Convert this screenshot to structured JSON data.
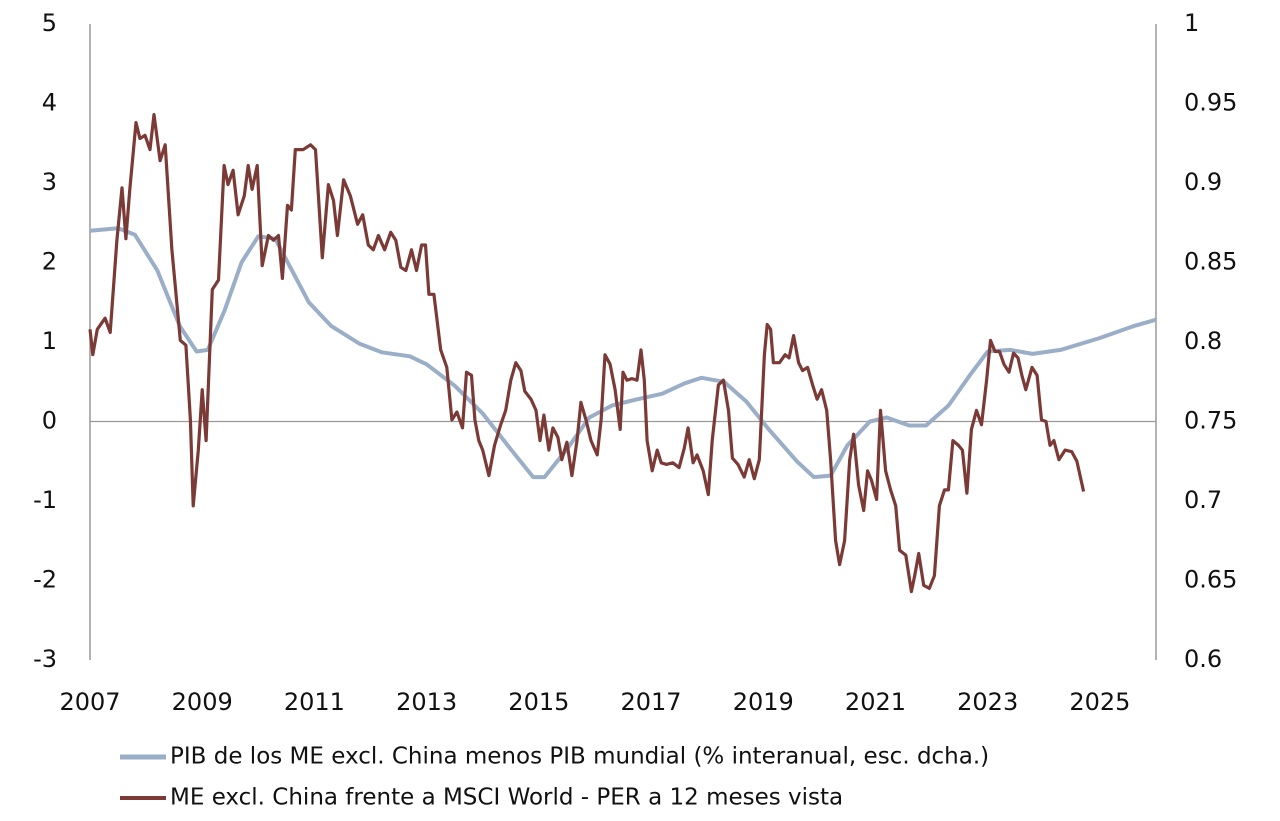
{
  "chart_data": {
    "type": "line",
    "legend_position": "bottom",
    "xlim": [
      2007,
      2026
    ],
    "xticks": [
      2007,
      2009,
      2011,
      2013,
      2015,
      2017,
      2019,
      2021,
      2023,
      2025
    ],
    "ylim": [
      -3,
      5
    ],
    "yticks": [
      -3,
      -2,
      -1,
      0,
      1,
      2,
      3,
      4,
      5
    ],
    "y2lim": [
      0.6,
      1
    ],
    "y2ticks": [
      0.6,
      0.65,
      0.7,
      0.75,
      0.8,
      0.85,
      0.9,
      0.95,
      1
    ],
    "series": [
      {
        "name": "PIB de los ME excl. China menos PIB mundial (% interanual, esc. dcha.)",
        "color": "#9aaec8",
        "axis": "y",
        "x": [
          2007,
          2007.5,
          2007.8,
          2008.2,
          2008.6,
          2008.9,
          2009.1,
          2009.4,
          2009.7,
          2010.0,
          2010.3,
          2010.6,
          2010.9,
          2011.3,
          2011.8,
          2012.2,
          2012.7,
          2013.0,
          2013.5,
          2014.0,
          2014.5,
          2014.9,
          2015.1,
          2015.5,
          2015.9,
          2016.3,
          2016.7,
          2017.2,
          2017.6,
          2017.9,
          2018.3,
          2018.7,
          2019.1,
          2019.6,
          2019.9,
          2020.2,
          2020.5,
          2020.9,
          2021.2,
          2021.6,
          2021.9,
          2022.3,
          2022.7,
          2023.0,
          2023.4,
          2023.8,
          2024.3,
          2025,
          2025.6,
          2026
        ],
        "values": [
          2.4,
          2.43,
          2.35,
          1.9,
          1.2,
          0.88,
          0.9,
          1.4,
          2.0,
          2.33,
          2.3,
          1.9,
          1.5,
          1.2,
          0.98,
          0.87,
          0.82,
          0.72,
          0.45,
          0.1,
          -0.35,
          -0.7,
          -0.7,
          -0.35,
          0.05,
          0.2,
          0.27,
          0.35,
          0.48,
          0.55,
          0.5,
          0.25,
          -0.1,
          -0.5,
          -0.7,
          -0.68,
          -0.3,
          0.0,
          0.05,
          -0.05,
          -0.05,
          0.2,
          0.6,
          0.88,
          0.9,
          0.85,
          0.9,
          1.05,
          1.2,
          1.28
        ]
      },
      {
        "name": "ME excl. China frente a MSCI World - PER a 12 meses vista",
        "color": "#7b3a35",
        "axis": "y2",
        "x": [
          2007.0,
          2007.05,
          2007.13,
          2007.27,
          2007.36,
          2007.48,
          2007.57,
          2007.64,
          2007.71,
          2007.82,
          2007.89,
          2007.98,
          2008.07,
          2008.14,
          2008.25,
          2008.34,
          2008.46,
          2008.61,
          2008.71,
          2008.79,
          2008.84,
          2008.93,
          2009.0,
          2009.07,
          2009.18,
          2009.29,
          2009.39,
          2009.46,
          2009.55,
          2009.64,
          2009.75,
          2009.82,
          2009.89,
          2009.98,
          2010.07,
          2010.18,
          2010.27,
          2010.36,
          2010.43,
          2010.52,
          2010.59,
          2010.66,
          2010.8,
          2010.93,
          2011.02,
          2011.14,
          2011.25,
          2011.34,
          2011.41,
          2011.52,
          2011.64,
          2011.77,
          2011.86,
          2011.96,
          2012.05,
          2012.14,
          2012.25,
          2012.36,
          2012.45,
          2012.54,
          2012.63,
          2012.73,
          2012.82,
          2012.91,
          2012.98,
          2013.04,
          2013.13,
          2013.25,
          2013.36,
          2013.45,
          2013.54,
          2013.64,
          2013.71,
          2013.8,
          2013.86,
          2013.93,
          2014.0,
          2014.11,
          2014.21,
          2014.32,
          2014.41,
          2014.5,
          2014.59,
          2014.68,
          2014.75,
          2014.86,
          2014.95,
          2015.02,
          2015.09,
          2015.18,
          2015.25,
          2015.34,
          2015.41,
          2015.5,
          2015.59,
          2015.68,
          2015.75,
          2015.84,
          2015.93,
          2016.04,
          2016.11,
          2016.18,
          2016.27,
          2016.36,
          2016.45,
          2016.5,
          2016.57,
          2016.66,
          2016.75,
          2016.82,
          2016.88,
          2016.93,
          2017.02,
          2017.11,
          2017.18,
          2017.27,
          2017.39,
          2017.5,
          2017.59,
          2017.66,
          2017.75,
          2017.82,
          2017.93,
          2018.02,
          2018.09,
          2018.2,
          2018.29,
          2018.38,
          2018.45,
          2018.55,
          2018.66,
          2018.75,
          2018.84,
          2018.93,
          2019.02,
          2019.07,
          2019.13,
          2019.18,
          2019.29,
          2019.39,
          2019.46,
          2019.54,
          2019.63,
          2019.7,
          2019.79,
          2019.88,
          2019.96,
          2020.04,
          2020.13,
          2020.2,
          2020.29,
          2020.36,
          2020.45,
          2020.54,
          2020.61,
          2020.7,
          2020.79,
          2020.86,
          2020.93,
          2021.02,
          2021.09,
          2021.18,
          2021.27,
          2021.36,
          2021.43,
          2021.54,
          2021.64,
          2021.7,
          2021.77,
          2021.86,
          2021.96,
          2022.05,
          2022.14,
          2022.23,
          2022.3,
          2022.38,
          2022.48,
          2022.55,
          2022.63,
          2022.71,
          2022.8,
          2022.89,
          2022.98,
          2023.05,
          2023.13,
          2023.21,
          2023.29,
          2023.38,
          2023.46,
          2023.54,
          2023.61,
          2023.68,
          2023.79,
          2023.88,
          2023.96,
          2024.04,
          2024.11,
          2024.18,
          2024.27,
          2024.38,
          2024.5,
          2024.59,
          2024.71
        ],
        "values": [
          0.808,
          0.792,
          0.808,
          0.815,
          0.806,
          0.864,
          0.897,
          0.865,
          0.896,
          0.938,
          0.928,
          0.93,
          0.921,
          0.943,
          0.914,
          0.924,
          0.858,
          0.801,
          0.798,
          0.751,
          0.697,
          0.732,
          0.77,
          0.738,
          0.833,
          0.839,
          0.911,
          0.899,
          0.908,
          0.88,
          0.892,
          0.911,
          0.896,
          0.911,
          0.848,
          0.867,
          0.864,
          0.867,
          0.84,
          0.886,
          0.883,
          0.921,
          0.921,
          0.924,
          0.921,
          0.853,
          0.899,
          0.889,
          0.867,
          0.902,
          0.892,
          0.874,
          0.88,
          0.861,
          0.858,
          0.867,
          0.858,
          0.869,
          0.864,
          0.847,
          0.845,
          0.858,
          0.845,
          0.861,
          0.861,
          0.83,
          0.83,
          0.795,
          0.784,
          0.751,
          0.756,
          0.746,
          0.781,
          0.779,
          0.751,
          0.738,
          0.732,
          0.716,
          0.735,
          0.748,
          0.757,
          0.776,
          0.787,
          0.782,
          0.769,
          0.764,
          0.757,
          0.738,
          0.754,
          0.732,
          0.746,
          0.74,
          0.726,
          0.737,
          0.716,
          0.738,
          0.762,
          0.751,
          0.738,
          0.729,
          0.751,
          0.792,
          0.786,
          0.77,
          0.745,
          0.781,
          0.776,
          0.777,
          0.776,
          0.795,
          0.776,
          0.738,
          0.719,
          0.732,
          0.724,
          0.723,
          0.724,
          0.721,
          0.733,
          0.746,
          0.724,
          0.729,
          0.719,
          0.704,
          0.738,
          0.773,
          0.776,
          0.757,
          0.727,
          0.723,
          0.715,
          0.726,
          0.714,
          0.726,
          0.792,
          0.811,
          0.808,
          0.787,
          0.787,
          0.792,
          0.79,
          0.804,
          0.787,
          0.782,
          0.784,
          0.773,
          0.764,
          0.77,
          0.757,
          0.726,
          0.675,
          0.66,
          0.675,
          0.726,
          0.742,
          0.71,
          0.694,
          0.719,
          0.713,
          0.701,
          0.757,
          0.719,
          0.707,
          0.697,
          0.669,
          0.666,
          0.643,
          0.653,
          0.667,
          0.647,
          0.645,
          0.653,
          0.697,
          0.707,
          0.707,
          0.738,
          0.735,
          0.732,
          0.705,
          0.745,
          0.757,
          0.748,
          0.776,
          0.801,
          0.794,
          0.794,
          0.786,
          0.781,
          0.793,
          0.79,
          0.779,
          0.77,
          0.784,
          0.779,
          0.751,
          0.75,
          0.735,
          0.738,
          0.726,
          0.732,
          0.731,
          0.725,
          0.706
        ]
      }
    ]
  }
}
